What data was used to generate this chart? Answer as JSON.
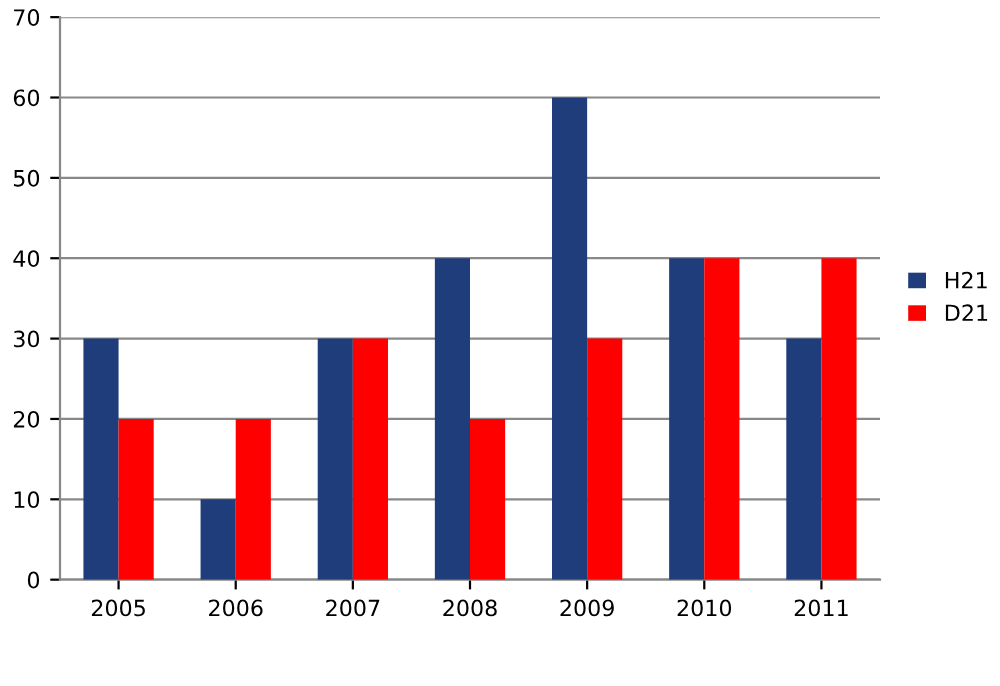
{
  "chart_data": {
    "type": "bar",
    "categories": [
      "2005",
      "2006",
      "2007",
      "2008",
      "2009",
      "2010",
      "2011"
    ],
    "series": [
      {
        "name": "H21",
        "color": "#1f3d7a",
        "values": [
          30,
          10,
          30,
          40,
          60,
          40,
          30
        ]
      },
      {
        "name": "D21",
        "color": "#ff0000",
        "values": [
          20,
          20,
          30,
          20,
          30,
          40,
          40
        ]
      }
    ],
    "ylim": [
      0,
      70
    ],
    "yticks": [
      0,
      10,
      20,
      30,
      40,
      50,
      60,
      70
    ],
    "grid": "y",
    "legend": "right"
  }
}
